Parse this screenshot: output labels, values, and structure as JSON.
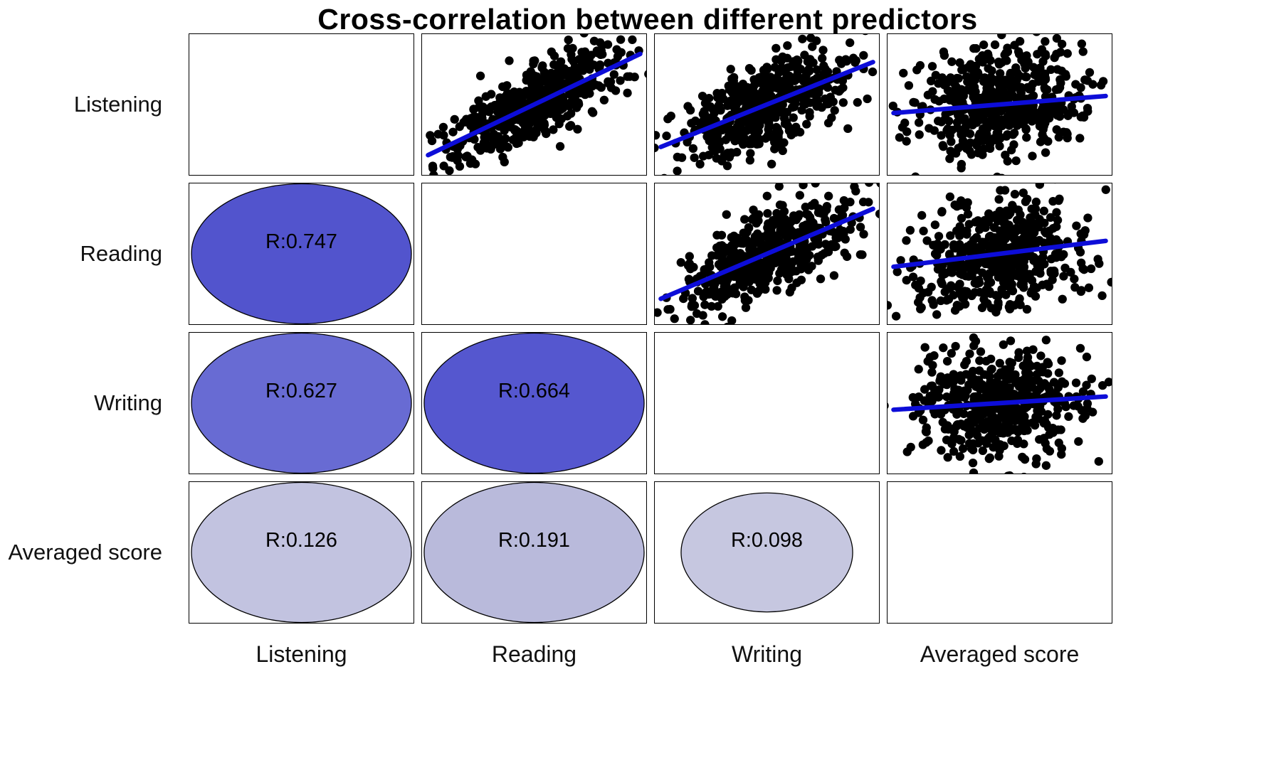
{
  "title": "Cross-correlation between different predictors",
  "chart_data": {
    "type": "scatter",
    "subtype": "pairs-correlation-matrix",
    "title": "Cross-correlation between different predictors",
    "variables": [
      "Listening",
      "Reading",
      "Writing",
      "Averaged score"
    ],
    "row_labels": [
      "Listening",
      "Reading",
      "Writing",
      "Averaged score"
    ],
    "col_labels": [
      "Listening",
      "Reading",
      "Writing",
      "Averaged score"
    ],
    "diagonal": "empty",
    "upper_triangle": "scatter plots with linear fit line",
    "lower_triangle": "correlation ellipses labeled with Pearson R",
    "legend_position": "none",
    "grid": "off",
    "n_points_per_panel": 500,
    "correlations": {
      "Listening-Reading": 0.747,
      "Listening-Writing": 0.627,
      "Reading-Writing": 0.664,
      "Listening-Averaged score": 0.126,
      "Reading-Averaged score": 0.191,
      "Writing-Averaged score": 0.098
    },
    "panels": [
      {
        "row": 0,
        "col": 1,
        "kind": "scatter",
        "x": "Reading",
        "y": "Listening",
        "r": 0.747,
        "seed": 11
      },
      {
        "row": 0,
        "col": 2,
        "kind": "scatter",
        "x": "Writing",
        "y": "Listening",
        "r": 0.627,
        "seed": 22
      },
      {
        "row": 0,
        "col": 3,
        "kind": "scatter",
        "x": "Averaged score",
        "y": "Listening",
        "r": 0.126,
        "seed": 33
      },
      {
        "row": 1,
        "col": 2,
        "kind": "scatter",
        "x": "Writing",
        "y": "Reading",
        "r": 0.664,
        "seed": 44
      },
      {
        "row": 1,
        "col": 3,
        "kind": "scatter",
        "x": "Averaged score",
        "y": "Reading",
        "r": 0.191,
        "seed": 55
      },
      {
        "row": 2,
        "col": 3,
        "kind": "scatter",
        "x": "Averaged score",
        "y": "Writing",
        "r": 0.098,
        "seed": 66
      },
      {
        "row": 1,
        "col": 0,
        "kind": "ellipse",
        "label": "R:0.747",
        "r": 0.747,
        "fill": "#5254cd",
        "scale_x": 1.0,
        "scale_y": 1.0
      },
      {
        "row": 2,
        "col": 0,
        "kind": "ellipse",
        "label": "R:0.627",
        "r": 0.627,
        "fill": "#686bd3",
        "scale_x": 1.0,
        "scale_y": 1.0
      },
      {
        "row": 2,
        "col": 1,
        "kind": "ellipse",
        "label": "R:0.664",
        "r": 0.664,
        "fill": "#5557cf",
        "scale_x": 1.0,
        "scale_y": 1.0
      },
      {
        "row": 3,
        "col": 0,
        "kind": "ellipse",
        "label": "R:0.126",
        "r": 0.126,
        "fill": "#c2c3e0",
        "scale_x": 1.0,
        "scale_y": 1.0
      },
      {
        "row": 3,
        "col": 1,
        "kind": "ellipse",
        "label": "R:0.191",
        "r": 0.191,
        "fill": "#b9badb",
        "scale_x": 1.0,
        "scale_y": 1.0
      },
      {
        "row": 3,
        "col": 2,
        "kind": "ellipse",
        "label": "R:0.098",
        "r": 0.098,
        "fill": "#c6c7e0",
        "scale_x": 0.78,
        "scale_y": 0.85
      }
    ],
    "colors": {
      "point": "#000000",
      "fit_line": "#0d0dd8",
      "panel_border": "#000000",
      "ellipse_outline": "#000000",
      "strong_corr_fill": "#5254cd",
      "weak_corr_fill": "#c2c3e0",
      "label_text": "#111111",
      "title_text": "#000000"
    }
  }
}
